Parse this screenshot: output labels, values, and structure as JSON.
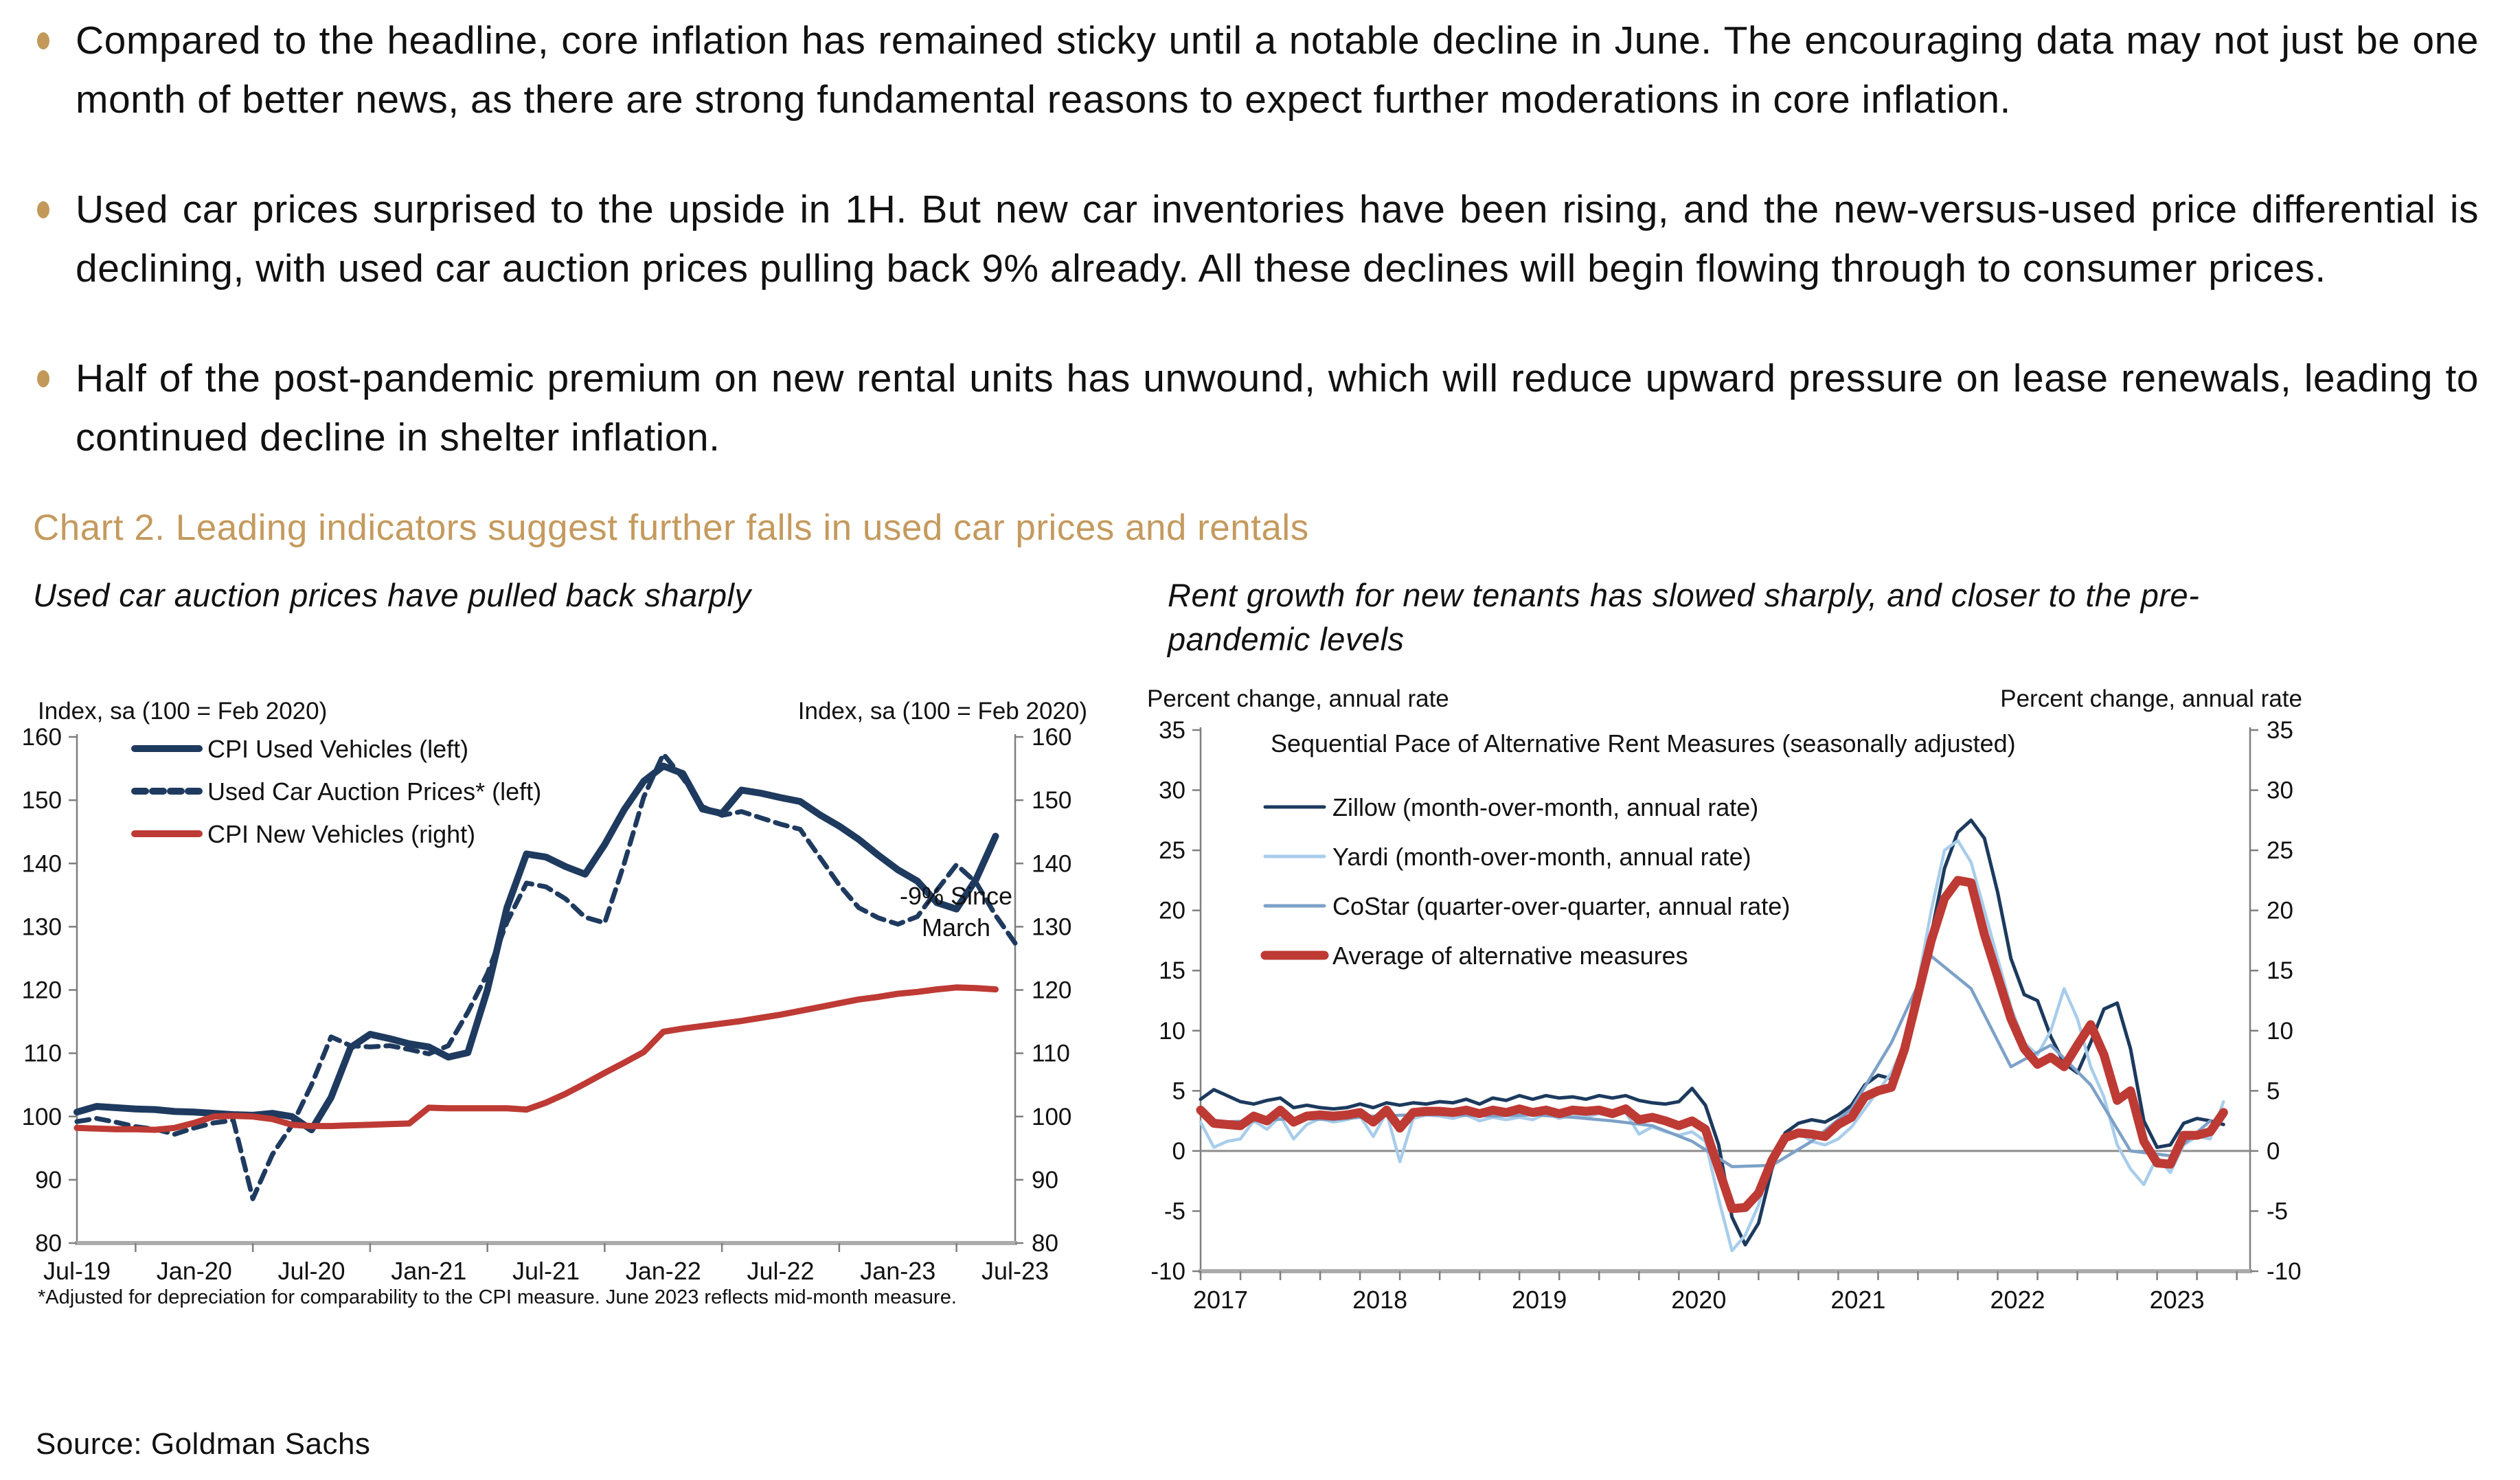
{
  "accent_gold": "#c49a5e",
  "bullets": [
    {
      "text": "Compared to the headline, core inflation has remained sticky until a notable decline in June. The encouraging data may not just be one month of better news, as there are strong fundamental reasons to expect further moderations in core inflation."
    },
    {
      "text": "Used car prices surprised to the upside in 1H. But new car inventories have been rising, and the new-versus-used price differential is declining, with used car auction prices pulling back 9% already. All these declines will begin flowing through to consumer prices."
    },
    {
      "text": "Half of the post-pandemic premium on new rental units has unwound, which will reduce upward pressure on lease renewals, leading to continued decline in shelter inflation."
    }
  ],
  "heading": "Chart 2. Leading indicators suggest further falls in used car prices and rentals",
  "subtitle_left": "Used car auction prices have pulled back sharply",
  "subtitle_right": "Rent growth for new tenants has slowed sharply, and closer to the pre-pandemic levels",
  "source": "Source: Goldman Sachs",
  "chart_data": [
    {
      "id": "used-car-chart",
      "type": "line",
      "ylabel_left": "Index, sa (100 = Feb 2020)",
      "ylabel_right": "Index, sa (100 = Feb 2020)",
      "ylim": [
        80,
        160
      ],
      "yticks": [
        160,
        150,
        140,
        130,
        120,
        110,
        100,
        90,
        80
      ],
      "x_start_month": "Jul-2019",
      "x_tick_labels": [
        "Jul-19",
        "Jan-20",
        "Jul-20",
        "Jan-21",
        "Jul-21",
        "Jan-22",
        "Jul-22",
        "Jan-23",
        "Jul-23"
      ],
      "x_tick_months": [
        0,
        6,
        12,
        18,
        24,
        30,
        36,
        42,
        48
      ],
      "annotation": {
        "lines": [
          "-9% Since",
          "March"
        ]
      },
      "footnote": "*Adjusted for depreciation for comparability to the CPI measure. June 2023 reflects mid-month measure.",
      "grid": "off",
      "legend_position": "top-left",
      "series": [
        {
          "name": "CPI Used Vehicles (left)",
          "color": "#1f3a5f",
          "width": 10,
          "dash": null,
          "x_step": 1,
          "x_first": 0,
          "values": [
            100.7,
            101.6,
            101.4,
            101.2,
            101.1,
            100.8,
            100.7,
            100.5,
            100.3,
            100.2,
            100.5,
            100.0,
            97.9,
            103.0,
            110.9,
            113.0,
            112.3,
            111.5,
            111.0,
            109.4,
            110.1,
            120.0,
            133.0,
            141.5,
            141.0,
            139.5,
            138.3,
            143.0,
            148.5,
            153.0,
            155.4,
            154.2,
            148.6,
            147.9,
            151.6,
            151.1,
            150.4,
            149.8,
            147.7,
            145.9,
            143.8,
            141.3,
            139.0,
            137.2,
            133.8,
            132.8,
            137.5,
            144.3
          ]
        },
        {
          "name": "Used Car Auction Prices* (left)",
          "color": "#1f3a5f",
          "width": 7,
          "dash": "18 11",
          "x_step": 1,
          "x_first": 0,
          "values": [
            99.2,
            99.7,
            99.1,
            98.4,
            98.0,
            97.2,
            98.2,
            99.0,
            99.4,
            87.0,
            94.0,
            98.6,
            105.0,
            112.6,
            111.2,
            111.0,
            111.2,
            110.6,
            109.9,
            111.2,
            116.5,
            122.6,
            130.7,
            136.9,
            136.3,
            134.4,
            131.5,
            130.6,
            140.0,
            150.5,
            157.3,
            153.5,
            149.0,
            147.6,
            148.2,
            147.2,
            146.2,
            145.4,
            141.0,
            136.6,
            133.0,
            131.4,
            130.4,
            131.6,
            135.8,
            139.8,
            137.0,
            131.8,
            127.4
          ]
        },
        {
          "name": "CPI New Vehicles (right)",
          "color": "#be3a34",
          "width": 9,
          "dash": null,
          "x_step": 1,
          "x_first": 0,
          "values": [
            98.2,
            98.1,
            98.0,
            98.0,
            97.9,
            98.2,
            99.0,
            100.0,
            100.1,
            100.0,
            99.6,
            98.7,
            98.5,
            98.5,
            98.6,
            98.7,
            98.8,
            98.9,
            101.4,
            101.3,
            101.3,
            101.3,
            101.3,
            101.1,
            102.2,
            103.6,
            105.2,
            106.9,
            108.5,
            110.2,
            113.4,
            113.9,
            114.3,
            114.7,
            115.1,
            115.6,
            116.1,
            116.7,
            117.3,
            117.9,
            118.5,
            118.9,
            119.4,
            119.7,
            120.1,
            120.4,
            120.3,
            120.1
          ]
        }
      ]
    },
    {
      "id": "rent-chart",
      "type": "line",
      "title": "Sequential Pace of Alternative Rent Measures (seasonally adjusted)",
      "ylabel_left": "Percent change, annual rate",
      "ylabel_right": "Percent change, annual rate",
      "ylim": [
        -10,
        35
      ],
      "yticks": [
        35,
        30,
        25,
        20,
        15,
        10,
        5,
        0,
        -5,
        -10
      ],
      "zero_line": true,
      "x_start_month": "Jan-2017",
      "x_tick_labels": [
        "2017",
        "2018",
        "2019",
        "2020",
        "2021",
        "2022",
        "2023"
      ],
      "x_label_months": [
        1.5,
        13.5,
        25.5,
        37.5,
        49.5,
        61.5,
        73.5
      ],
      "x_minor_tick_step": 3,
      "grid": "off",
      "legend_position": "top-left",
      "series": [
        {
          "name": "Zillow (month-over-month, annual rate)",
          "color": "#1c3a5e",
          "width": 5,
          "dash": null,
          "x_step": 1,
          "x_first": 0,
          "values": [
            4.3,
            5.1,
            4.6,
            4.1,
            3.9,
            4.2,
            4.4,
            3.6,
            3.8,
            3.6,
            3.5,
            3.6,
            3.9,
            3.6,
            4.0,
            3.8,
            4.0,
            3.9,
            4.1,
            4.0,
            4.3,
            3.9,
            4.4,
            4.2,
            4.6,
            4.3,
            4.6,
            4.4,
            4.5,
            4.3,
            4.6,
            4.4,
            4.6,
            4.2,
            4.0,
            3.9,
            4.1,
            5.2,
            3.8,
            0.5,
            -5.5,
            -7.8,
            -6.0,
            -1.5,
            1.5,
            2.3,
            2.6,
            2.4,
            3.0,
            3.8,
            5.5,
            6.3,
            6.0,
            8.0,
            12.5,
            18.0,
            23.5,
            26.5,
            27.5,
            26.0,
            21.5,
            16.0,
            13.0,
            12.5,
            9.5,
            7.3,
            6.5,
            9.0,
            11.8,
            12.3,
            8.5,
            2.5,
            0.3,
            0.5,
            2.3,
            2.7,
            2.5,
            2.2
          ]
        },
        {
          "name": "Yardi (month-over-month, annual rate)",
          "color": "#a8cdeb",
          "width": 4.5,
          "dash": null,
          "x_step": 1,
          "x_first": 0,
          "values": [
            2.4,
            0.3,
            0.8,
            1.0,
            2.5,
            1.8,
            2.9,
            1.0,
            2.2,
            2.7,
            2.4,
            2.6,
            2.9,
            1.2,
            3.2,
            -0.9,
            2.7,
            3.0,
            2.9,
            2.7,
            3.0,
            2.5,
            2.8,
            2.6,
            2.8,
            2.6,
            3.1,
            2.7,
            3.0,
            2.8,
            3.1,
            2.9,
            3.2,
            1.4,
            2.0,
            1.6,
            1.3,
            1.6,
            0.8,
            -4.0,
            -8.3,
            -7.0,
            -4.5,
            -0.5,
            1.0,
            1.5,
            0.8,
            0.5,
            1.0,
            2.0,
            3.5,
            5.0,
            6.5,
            9.0,
            14.0,
            20.0,
            25.0,
            25.8,
            24.0,
            20.0,
            16.0,
            12.0,
            9.0,
            8.0,
            10.0,
            13.5,
            11.0,
            7.0,
            4.5,
            0.5,
            -1.5,
            -2.8,
            -0.5,
            -1.8,
            0.5,
            1.2,
            1.0,
            4.1
          ]
        },
        {
          "name": "CoStar (quarter-over-quarter, annual rate)",
          "color": "#7da1c8",
          "width": 4.5,
          "dash": null,
          "x_step": 3,
          "x_first": 1,
          "values": [
            2.4,
            2.5,
            2.7,
            2.6,
            2.9,
            3.0,
            3.0,
            2.9,
            3.0,
            2.8,
            2.5,
            2.1,
            0.8,
            -1.3,
            -1.2,
            0.8,
            3.5,
            9.0,
            16.2,
            13.5,
            7.0,
            8.8,
            5.5,
            0.0,
            -0.4,
            2.5
          ]
        },
        {
          "name": "Average of alternative measures",
          "color": "#be3a34",
          "width": 13,
          "dash": null,
          "x_step": 1,
          "x_first": 0,
          "values": [
            3.4,
            2.3,
            2.2,
            2.1,
            2.9,
            2.5,
            3.4,
            2.4,
            2.9,
            3.0,
            2.9,
            3.0,
            3.2,
            2.4,
            3.4,
            1.9,
            3.2,
            3.3,
            3.3,
            3.2,
            3.4,
            3.1,
            3.4,
            3.2,
            3.5,
            3.2,
            3.4,
            3.1,
            3.4,
            3.3,
            3.4,
            3.1,
            3.5,
            2.6,
            2.8,
            2.5,
            2.1,
            2.5,
            1.8,
            -1.5,
            -4.8,
            -4.7,
            -3.5,
            -0.8,
            1.1,
            1.5,
            1.4,
            1.2,
            2.2,
            2.8,
            4.5,
            5.0,
            5.3,
            8.5,
            13.0,
            17.5,
            21.0,
            22.5,
            22.3,
            18.0,
            14.5,
            11.0,
            8.5,
            7.2,
            7.8,
            7.0,
            8.8,
            10.5,
            8.0,
            4.2,
            5.0,
            0.8,
            -1.0,
            -1.1,
            1.3,
            1.3,
            1.6,
            3.2
          ]
        }
      ]
    }
  ]
}
